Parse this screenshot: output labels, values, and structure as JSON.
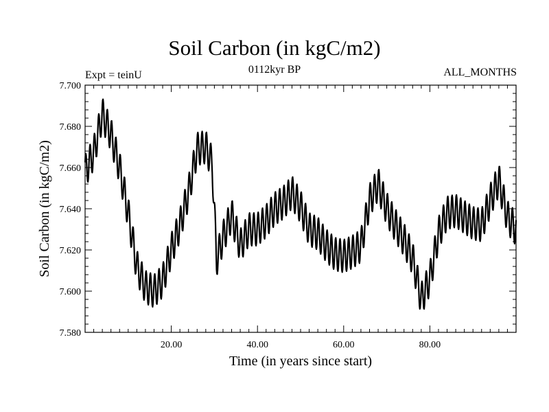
{
  "chart_data": {
    "type": "line",
    "title": "Soil Carbon (in kgC/m2)",
    "subtitle": "0112kyr BP",
    "left_note": "Expt = teinU",
    "right_note": "ALL_MONTHS",
    "xlabel": "Time (in years since start)",
    "ylabel": "Soil Carbon (in kgC/m2)",
    "xlim": [
      0,
      100
    ],
    "ylim": [
      7.58,
      7.7
    ],
    "x_ticks": [
      20,
      40,
      60,
      80
    ],
    "x_tick_labels": [
      "20.00",
      "40.00",
      "60.00",
      "80.00"
    ],
    "y_ticks": [
      7.58,
      7.6,
      7.62,
      7.64,
      7.66,
      7.68,
      7.7
    ],
    "y_tick_labels": [
      "7.580",
      "7.600",
      "7.620",
      "7.640",
      "7.660",
      "7.680",
      "7.700"
    ],
    "annual_cycle_amplitude": 0.008,
    "series": [
      {
        "name": "Soil Carbon",
        "trend_x": [
          0,
          2,
          4,
          6,
          8,
          10,
          12,
          14,
          16,
          18,
          20,
          22,
          24,
          26,
          28,
          29.5,
          30.5,
          32,
          34,
          36,
          38,
          40,
          42,
          44,
          46,
          48,
          50,
          52,
          54,
          56,
          58,
          60,
          62,
          64,
          66,
          68,
          70,
          72,
          74,
          76,
          78,
          80,
          82,
          84,
          86,
          88,
          90,
          92,
          94,
          96,
          98,
          100
        ],
        "trend_y": [
          7.658,
          7.667,
          7.686,
          7.676,
          7.66,
          7.638,
          7.612,
          7.602,
          7.6,
          7.605,
          7.62,
          7.632,
          7.648,
          7.669,
          7.67,
          7.662,
          7.615,
          7.626,
          7.637,
          7.622,
          7.63,
          7.63,
          7.634,
          7.64,
          7.643,
          7.648,
          7.641,
          7.63,
          7.628,
          7.622,
          7.618,
          7.617,
          7.619,
          7.622,
          7.644,
          7.652,
          7.64,
          7.632,
          7.625,
          7.616,
          7.596,
          7.606,
          7.628,
          7.638,
          7.639,
          7.636,
          7.633,
          7.632,
          7.644,
          7.654,
          7.636,
          7.63
        ]
      }
    ]
  }
}
